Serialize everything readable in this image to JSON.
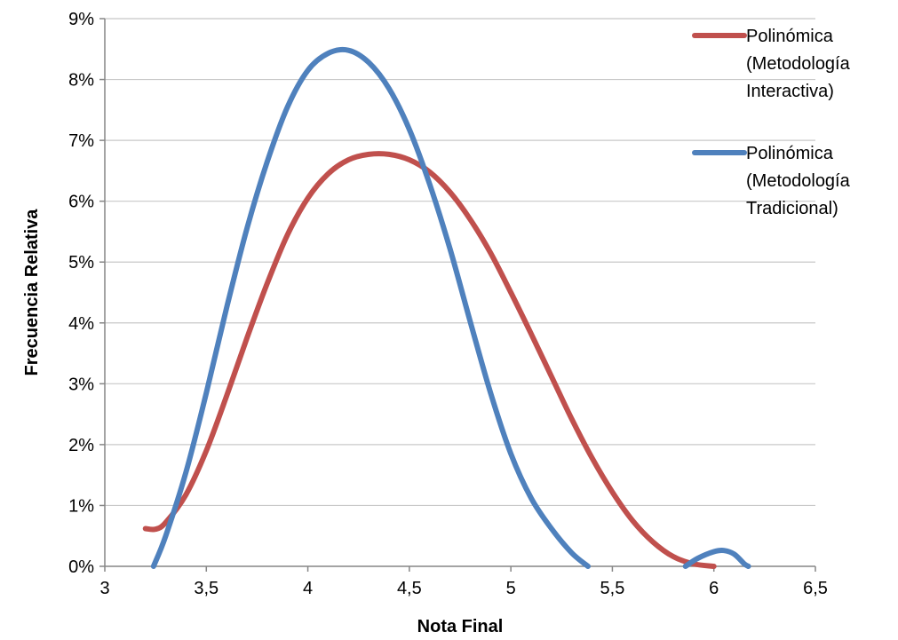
{
  "chart_data": {
    "type": "line",
    "title": "",
    "xlabel": "Nota Final",
    "ylabel": "Frecuencia Relativa",
    "xlim": [
      3,
      6.5
    ],
    "ylim": [
      0,
      0.09
    ],
    "x_ticks": [
      "3",
      "3,5",
      "4",
      "4,5",
      "5",
      "5,5",
      "6",
      "6,5"
    ],
    "y_ticks": [
      "0%",
      "1%",
      "2%",
      "3%",
      "4%",
      "5%",
      "6%",
      "7%",
      "8%",
      "9%"
    ],
    "grid": "horizontal",
    "legend_position": "top-right",
    "series": [
      {
        "name_lines": [
          "Polinómica",
          "(Metodología",
          "Interactiva)"
        ],
        "color": "#c0504d",
        "points": [
          [
            3.2,
            0.0062
          ],
          [
            3.25,
            0.0061
          ],
          [
            3.3,
            0.0072
          ],
          [
            3.4,
            0.0118
          ],
          [
            3.5,
            0.019
          ],
          [
            3.6,
            0.028
          ],
          [
            3.7,
            0.0375
          ],
          [
            3.8,
            0.0465
          ],
          [
            3.9,
            0.0545
          ],
          [
            4.0,
            0.0605
          ],
          [
            4.1,
            0.0645
          ],
          [
            4.2,
            0.0668
          ],
          [
            4.3,
            0.0677
          ],
          [
            4.4,
            0.0677
          ],
          [
            4.5,
            0.0668
          ],
          [
            4.6,
            0.0648
          ],
          [
            4.7,
            0.0615
          ],
          [
            4.8,
            0.057
          ],
          [
            4.9,
            0.0515
          ],
          [
            5.0,
            0.045
          ],
          [
            5.1,
            0.0382
          ],
          [
            5.2,
            0.0312
          ],
          [
            5.3,
            0.0242
          ],
          [
            5.4,
            0.0178
          ],
          [
            5.5,
            0.0122
          ],
          [
            5.6,
            0.0075
          ],
          [
            5.7,
            0.004
          ],
          [
            5.8,
            0.0016
          ],
          [
            5.9,
            0.0004
          ],
          [
            6.0,
            0.0
          ]
        ]
      },
      {
        "name_lines": [
          "Polinómica",
          "(Metodología",
          "Tradicional)"
        ],
        "color": "#4f81bd",
        "points": [
          [
            3.24,
            0.0
          ],
          [
            3.3,
            0.005
          ],
          [
            3.4,
            0.0155
          ],
          [
            3.5,
            0.0285
          ],
          [
            3.6,
            0.0425
          ],
          [
            3.7,
            0.0555
          ],
          [
            3.8,
            0.0665
          ],
          [
            3.9,
            0.0755
          ],
          [
            4.0,
            0.0815
          ],
          [
            4.1,
            0.0843
          ],
          [
            4.2,
            0.0848
          ],
          [
            4.3,
            0.0828
          ],
          [
            4.4,
            0.0785
          ],
          [
            4.5,
            0.0718
          ],
          [
            4.6,
            0.0628
          ],
          [
            4.7,
            0.0522
          ],
          [
            4.8,
            0.0402
          ],
          [
            4.9,
            0.0285
          ],
          [
            5.0,
            0.0185
          ],
          [
            5.1,
            0.0112
          ],
          [
            5.2,
            0.0062
          ],
          [
            5.3,
            0.0022
          ],
          [
            5.38,
            0.0
          ]
        ],
        "segment2": [
          [
            5.86,
            0.0
          ],
          [
            5.92,
            0.0013
          ],
          [
            6.0,
            0.0024
          ],
          [
            6.05,
            0.0026
          ],
          [
            6.1,
            0.002
          ],
          [
            6.15,
            0.0004
          ],
          [
            6.17,
            0.0
          ]
        ]
      }
    ]
  }
}
